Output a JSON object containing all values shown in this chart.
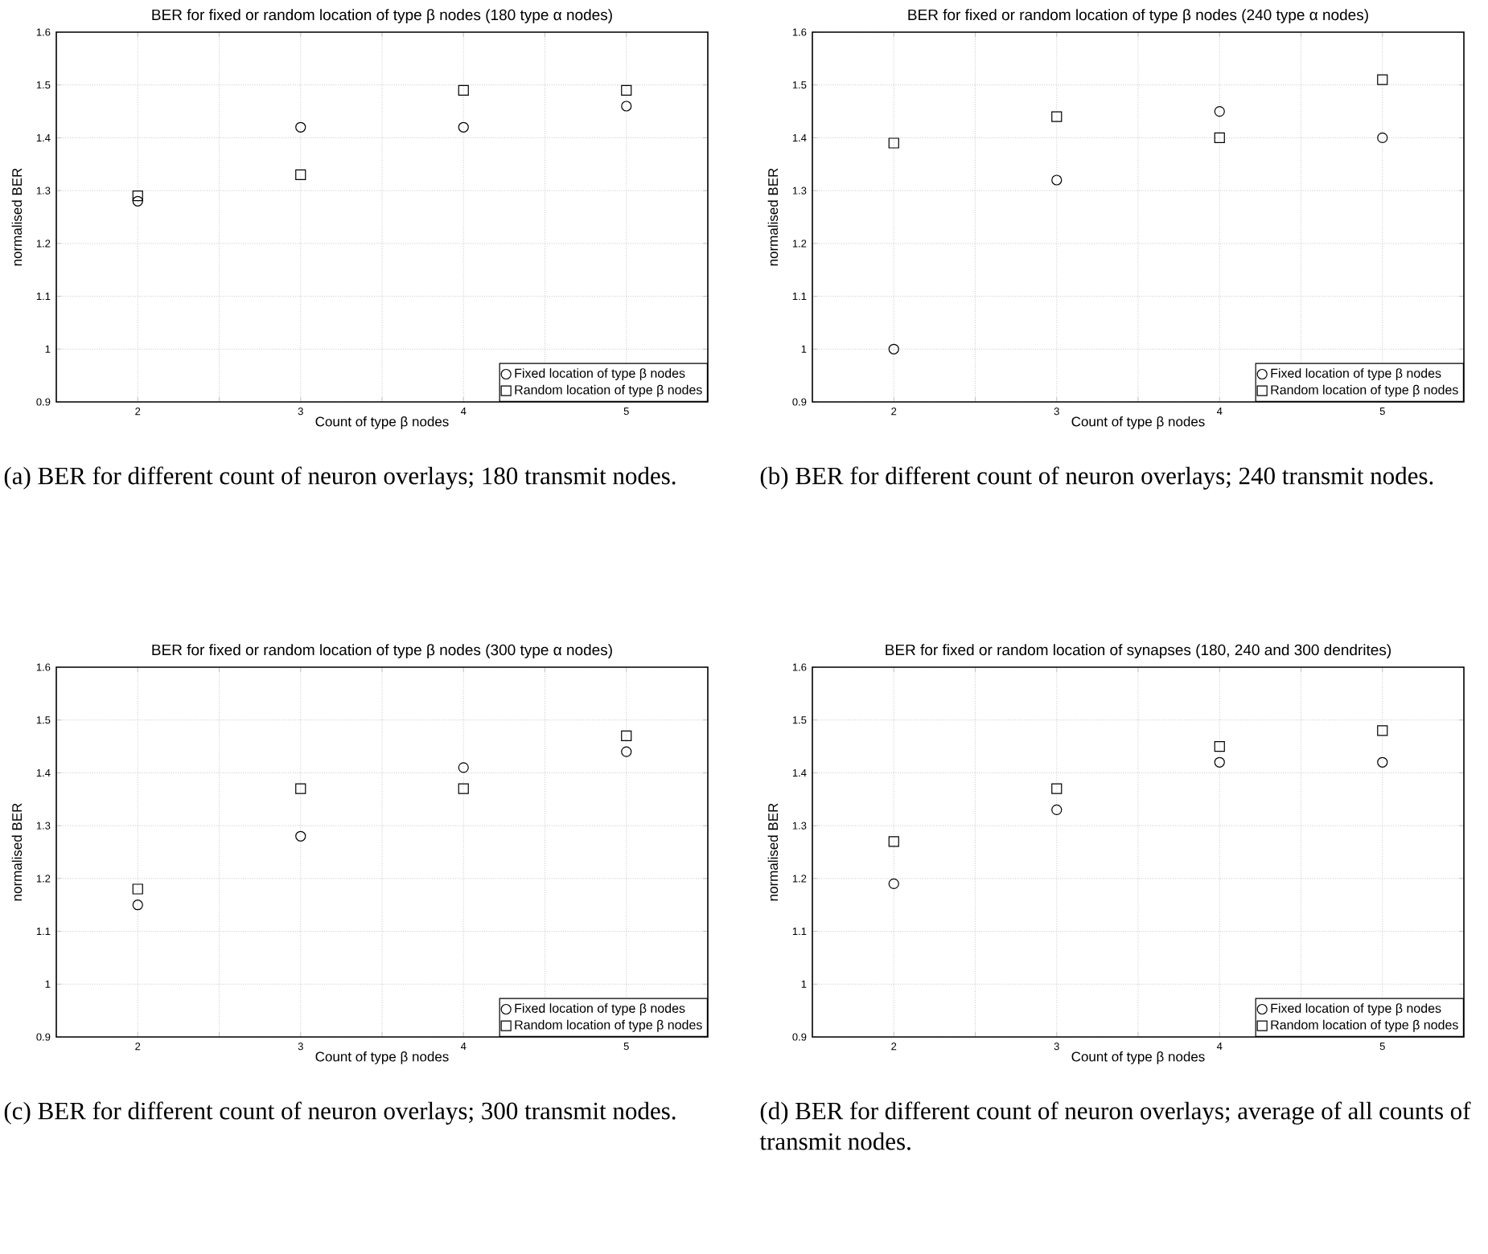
{
  "chart_data": [
    {
      "type": "scatter",
      "title": "BER for fixed or random location of type β nodes (180 type α nodes)",
      "xlabel": "Count of type β nodes",
      "ylabel": "normalised BER",
      "x": [
        2,
        3,
        4,
        5
      ],
      "series": [
        {
          "name": "Fixed location of type β nodes",
          "color": "#000000",
          "marker": "circle",
          "values": [
            1.28,
            1.42,
            1.42,
            1.46
          ]
        },
        {
          "name": "Random location of type β nodes",
          "color": "#000000",
          "marker": "square",
          "values": [
            1.29,
            1.33,
            1.49,
            1.49
          ]
        }
      ],
      "xlim": [
        1.5,
        5.5
      ],
      "xticks": [
        2,
        {
          "value": 2.5,
          "label": null
        },
        3,
        {
          "value": 3.5,
          "label": null
        },
        4,
        {
          "value": 4.5,
          "label": null
        },
        5
      ],
      "ylim": [
        0.9,
        1.6
      ],
      "yticks": [
        0.9,
        1,
        1.1,
        1.2,
        1.3,
        1.4,
        1.5,
        1.6
      ],
      "grid": true,
      "legend": "bottom right",
      "annotations": [
        "(a) BER for different count of neuron overlays; 180 transmit nodes."
      ]
    },
    {
      "type": "scatter",
      "title": "BER for fixed or random location of type β nodes (240 type α nodes)",
      "xlabel": "Count of type β nodes",
      "ylabel": "normalised BER",
      "x": [
        2,
        3,
        4,
        5
      ],
      "series": [
        {
          "name": "Fixed location of type β nodes",
          "color": "#000000",
          "marker": "circle",
          "values": [
            1.0,
            1.32,
            1.45,
            1.4
          ]
        },
        {
          "name": "Random location of type β nodes",
          "color": "#000000",
          "marker": "square",
          "values": [
            1.39,
            1.44,
            1.4,
            1.51
          ]
        }
      ],
      "xlim": [
        1.5,
        5.5
      ],
      "xticks": [
        2,
        {
          "value": 2.5,
          "label": null
        },
        3,
        {
          "value": 3.5,
          "label": null
        },
        4,
        {
          "value": 4.5,
          "label": null
        },
        5
      ],
      "ylim": [
        0.9,
        1.6
      ],
      "yticks": [
        0.9,
        1,
        1.1,
        1.2,
        1.3,
        1.4,
        1.5,
        1.6
      ],
      "grid": true,
      "legend": "bottom right",
      "annotations": [
        "(b) BER for different count of neuron overlays; 240 transmit nodes."
      ]
    },
    {
      "type": "scatter",
      "title": "BER for fixed or random location of type β nodes (300 type α nodes)",
      "xlabel": "Count of type β nodes",
      "ylabel": "normalised BER",
      "x": [
        2,
        3,
        4,
        5
      ],
      "series": [
        {
          "name": "Fixed location of type β nodes",
          "color": "#000000",
          "marker": "circle",
          "values": [
            1.15,
            1.28,
            1.41,
            1.44
          ]
        },
        {
          "name": "Random location of type β nodes",
          "color": "#000000",
          "marker": "square",
          "values": [
            1.18,
            1.37,
            1.37,
            1.47
          ]
        }
      ],
      "xlim": [
        1.5,
        5.5
      ],
      "xticks": [
        2,
        {
          "value": 2.5,
          "label": null
        },
        3,
        {
          "value": 3.5,
          "label": null
        },
        4,
        {
          "value": 4.5,
          "label": null
        },
        5
      ],
      "ylim": [
        0.9,
        1.6
      ],
      "yticks": [
        0.9,
        1,
        1.1,
        1.2,
        1.3,
        1.4,
        1.5,
        1.6
      ],
      "grid": true,
      "legend": "bottom right",
      "annotations": [
        "(c) BER for different count of neuron overlays; 300 transmit nodes."
      ]
    },
    {
      "type": "scatter",
      "title": "BER for fixed or random location of synapses (180, 240 and 300 dendrites)",
      "xlabel": "Count of type β nodes",
      "ylabel": "normalised BER",
      "x": [
        2,
        3,
        4,
        5
      ],
      "series": [
        {
          "name": "Fixed location of type β nodes",
          "color": "#000000",
          "marker": "circle",
          "values": [
            1.19,
            1.33,
            1.42,
            1.42
          ]
        },
        {
          "name": "Random location of type β nodes",
          "color": "#000000",
          "marker": "square",
          "values": [
            1.27,
            1.37,
            1.45,
            1.48
          ]
        }
      ],
      "xlim": [
        1.5,
        5.5
      ],
      "xticks": [
        2,
        {
          "value": 2.5,
          "label": null
        },
        3,
        {
          "value": 3.5,
          "label": null
        },
        4,
        {
          "value": 4.5,
          "label": null
        },
        5
      ],
      "ylim": [
        0.9,
        1.6
      ],
      "yticks": [
        0.9,
        1,
        1.1,
        1.2,
        1.3,
        1.4,
        1.5,
        1.6
      ],
      "grid": true,
      "legend": "bottom right",
      "annotations": [
        "(d) BER for different count of neuron overlays; average of all counts of transmit nodes."
      ]
    }
  ]
}
